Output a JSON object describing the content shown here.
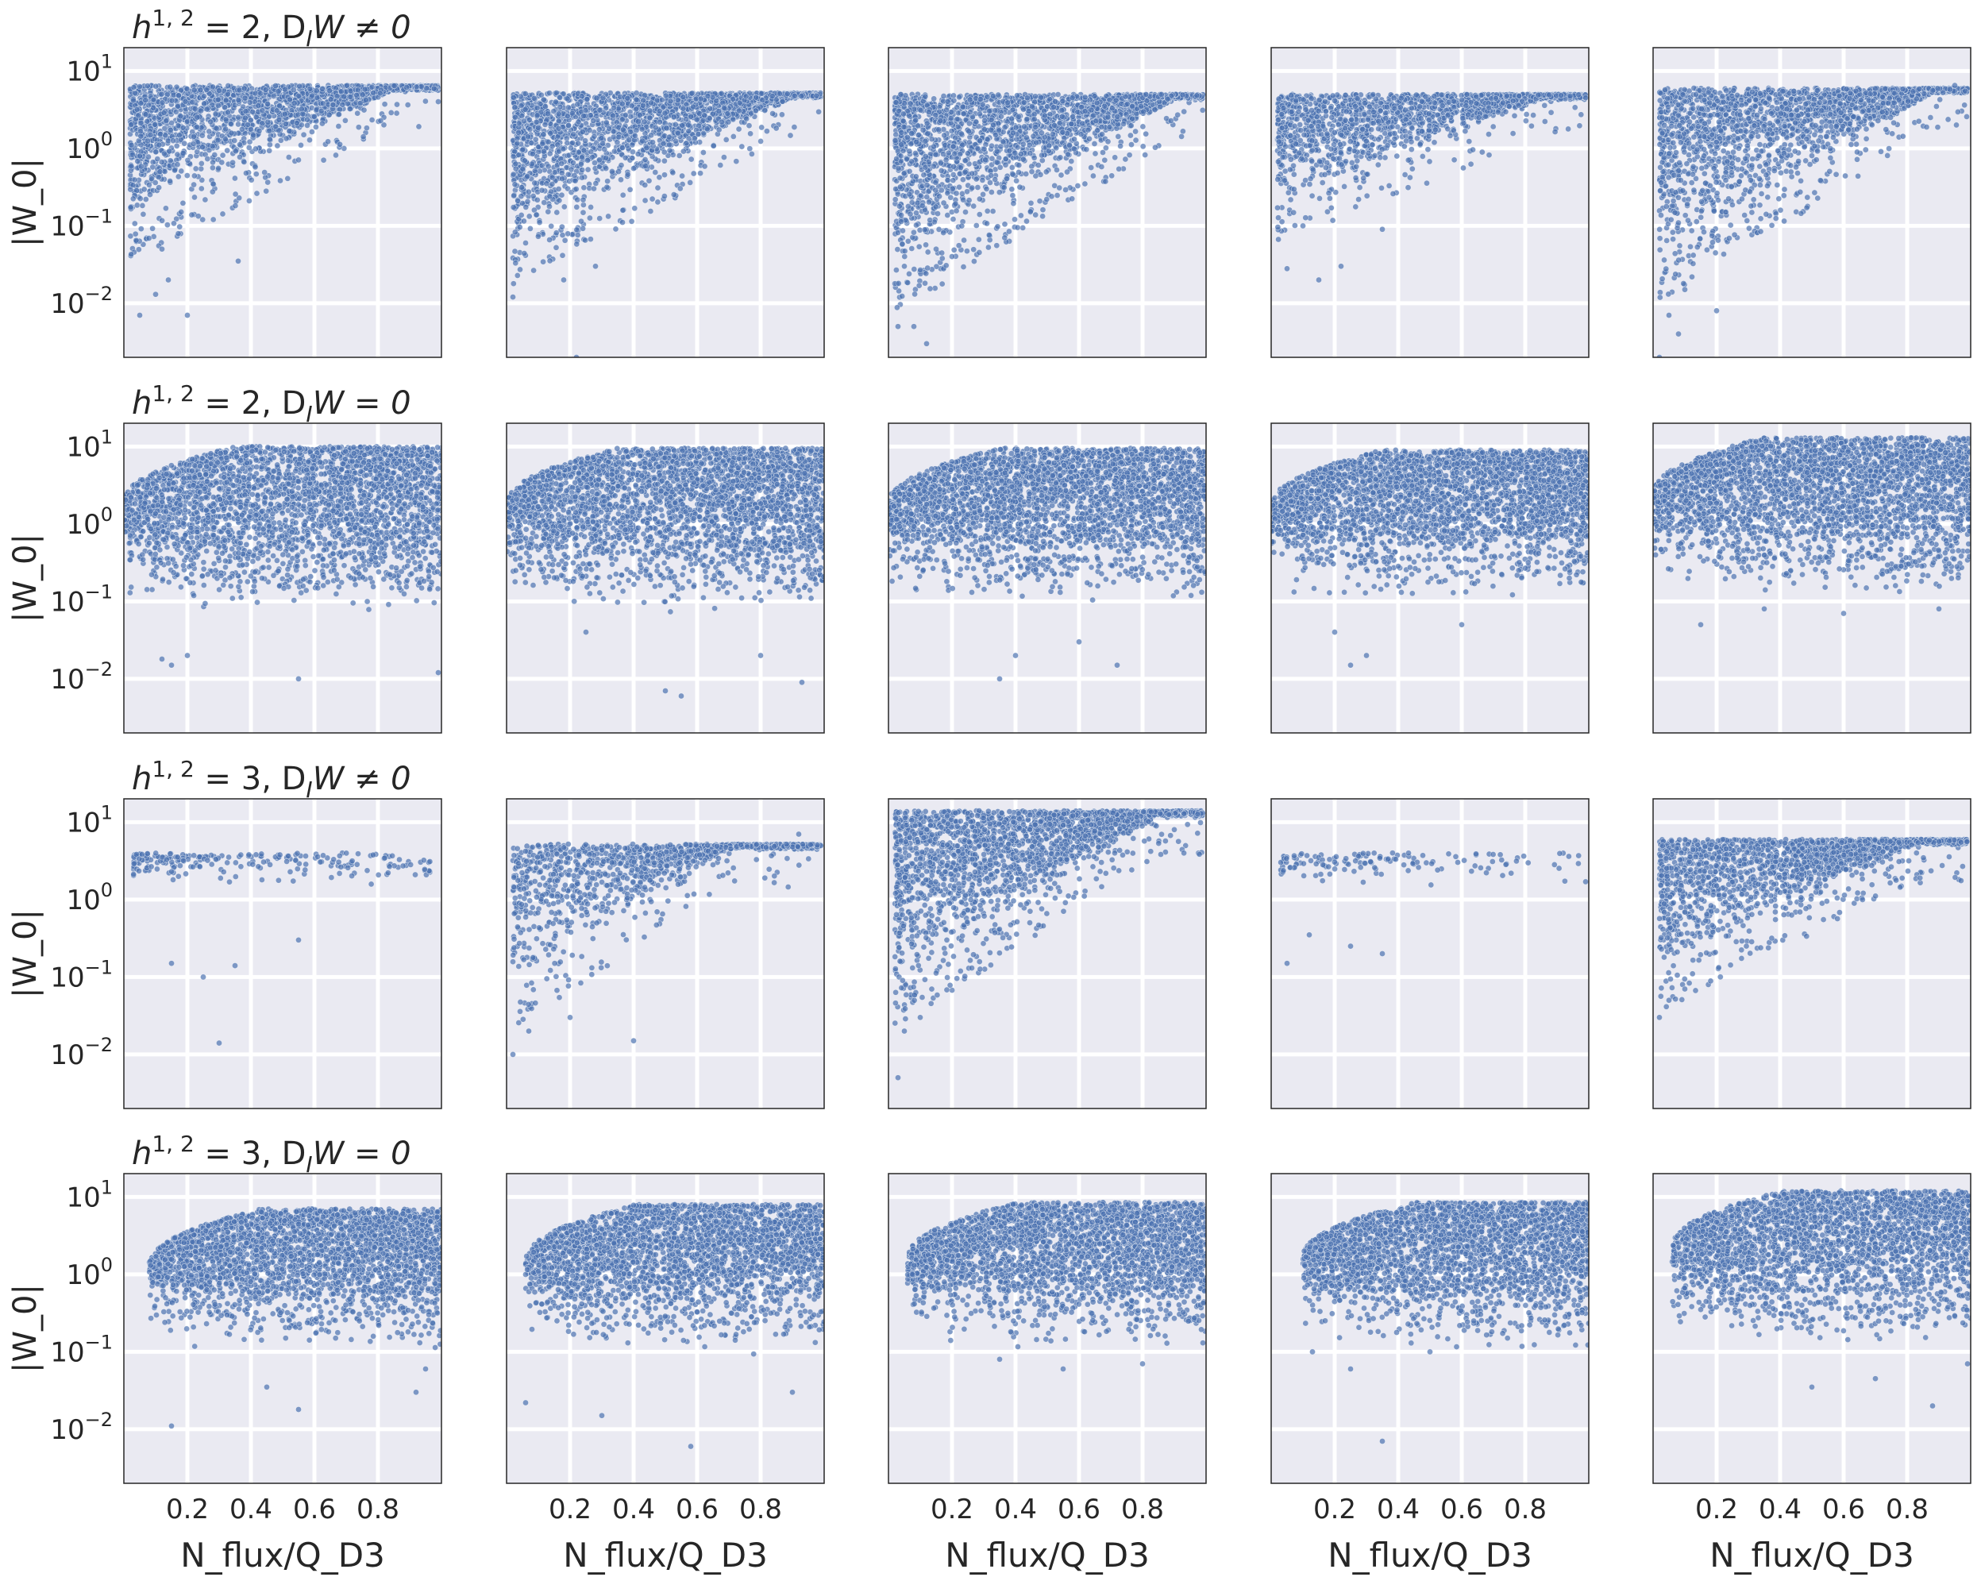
{
  "chart_data": {
    "type": "scatter",
    "layout": "4 rows x 5 columns of panels",
    "xlabel": "N_flux/Q_D3",
    "ylabel": "|W_0|",
    "x_ticks": [
      "0.2",
      "0.4",
      "0.6",
      "0.8"
    ],
    "x_tick_values": [
      0.2,
      0.4,
      0.6,
      0.8
    ],
    "y_ticks": [
      "10^-2",
      "10^-1",
      "10^0",
      "10^1"
    ],
    "y_tick_values": [
      0.01,
      0.1,
      1,
      10
    ],
    "xlim": [
      0.0,
      1.0
    ],
    "ylim": [
      0.002,
      20
    ],
    "y_scale": "log",
    "grid": true,
    "colors": {
      "points": "#4c72b0",
      "panel_bg": "#eaeaf2",
      "grid": "#ffffff"
    },
    "rows": [
      {
        "title": {
          "base": "h",
          "sup": "1, 2",
          "rest": " = 2, D",
          "sub": "I",
          "tail": "W ≠ 0"
        },
        "pattern": "wedge",
        "panels": [
          {
            "type": "wedge",
            "top": 6.5,
            "floor0": 0.1,
            "xconv": 0.85,
            "count": 2000,
            "outliers": [
              [
                0.05,
                0.007
              ],
              [
                0.14,
                0.02
              ],
              [
                0.2,
                0.007
              ],
              [
                0.36,
                0.035
              ],
              [
                0.12,
                0.05
              ],
              [
                0.1,
                0.013
              ],
              [
                0.99,
                4
              ]
            ]
          },
          {
            "type": "wedge",
            "top": 5.2,
            "floor0": 0.05,
            "xconv": 0.9,
            "count": 2200,
            "outliers": [
              [
                0.02,
                0.012
              ],
              [
                0.22,
                0.002
              ],
              [
                0.06,
                0.06
              ],
              [
                0.18,
                0.02
              ],
              [
                0.28,
                0.03
              ]
            ]
          },
          {
            "type": "wedge",
            "top": 5.0,
            "floor0": 0.02,
            "xconv": 0.9,
            "count": 2300,
            "outliers": [
              [
                0.03,
                0.005
              ],
              [
                0.08,
                0.005
              ],
              [
                0.12,
                0.003
              ],
              [
                0.05,
                0.03
              ],
              [
                0.15,
                0.05
              ],
              [
                0.2,
                0.04
              ]
            ]
          },
          {
            "type": "wedge",
            "top": 5.0,
            "floor0": 0.18,
            "xconv": 0.85,
            "count": 1700,
            "outliers": [
              [
                0.05,
                0.028
              ],
              [
                0.15,
                0.02
              ],
              [
                0.22,
                0.03
              ],
              [
                0.35,
                0.09
              ],
              [
                0.99,
                4.5
              ]
            ]
          },
          {
            "type": "wedge",
            "top": 6.0,
            "floor0": 0.03,
            "xconv": 0.88,
            "count": 2100,
            "outliers": [
              [
                0.02,
                0.002
              ],
              [
                0.05,
                0.007
              ],
              [
                0.08,
                0.004
              ],
              [
                0.1,
                0.015
              ],
              [
                0.2,
                0.008
              ],
              [
                0.95,
                6.5
              ]
            ]
          }
        ]
      },
      {
        "title": {
          "base": "h",
          "sup": "1, 2",
          "rest": " = 2, D",
          "sub": "I",
          "tail": "W = 0"
        },
        "pattern": "band",
        "panels": [
          {
            "type": "band",
            "top": 10.0,
            "bottom": 0.3,
            "count": 3000,
            "outliers": [
              [
                0.15,
                0.015
              ],
              [
                0.2,
                0.02
              ],
              [
                0.55,
                0.01
              ],
              [
                0.99,
                0.012
              ],
              [
                0.12,
                0.018
              ]
            ]
          },
          {
            "type": "band",
            "top": 9.5,
            "bottom": 0.3,
            "count": 3000,
            "outliers": [
              [
                0.25,
                0.04
              ],
              [
                0.5,
                0.007
              ],
              [
                0.55,
                0.006
              ],
              [
                0.93,
                0.009
              ],
              [
                0.8,
                0.02
              ]
            ]
          },
          {
            "type": "band",
            "top": 9.5,
            "bottom": 0.4,
            "count": 3000,
            "outliers": [
              [
                0.35,
                0.01
              ],
              [
                0.72,
                0.015
              ],
              [
                0.4,
                0.02
              ],
              [
                0.6,
                0.03
              ]
            ]
          },
          {
            "type": "band",
            "top": 9.0,
            "bottom": 0.45,
            "count": 3000,
            "outliers": [
              [
                0.25,
                0.015
              ],
              [
                0.2,
                0.04
              ],
              [
                0.6,
                0.05
              ],
              [
                0.3,
                0.02
              ]
            ]
          },
          {
            "type": "band",
            "top": 13.0,
            "bottom": 0.5,
            "count": 3000,
            "outliers": [
              [
                0.15,
                0.05
              ],
              [
                0.35,
                0.08
              ],
              [
                0.6,
                0.07
              ],
              [
                0.9,
                0.08
              ]
            ]
          }
        ]
      },
      {
        "title": {
          "base": "h",
          "sup": "1, 2",
          "rest": " = 3, D",
          "sub": "I",
          "tail": "W ≠ 0"
        },
        "pattern": "sparse",
        "panels": [
          {
            "type": "sparse",
            "top": 4.0,
            "count": 220,
            "outliers": [
              [
                0.3,
                0.014
              ],
              [
                0.15,
                0.15
              ],
              [
                0.25,
                0.1
              ],
              [
                0.35,
                0.14
              ],
              [
                0.55,
                0.3
              ]
            ]
          },
          {
            "type": "wedge",
            "top": 5.2,
            "floor0": 0.06,
            "xconv": 0.7,
            "count": 1200,
            "outliers": [
              [
                0.02,
                0.01
              ],
              [
                0.07,
                0.02
              ],
              [
                0.2,
                0.03
              ],
              [
                0.4,
                0.015
              ],
              [
                0.92,
                7
              ]
            ]
          },
          {
            "type": "wedge",
            "top": 14.0,
            "floor0": 0.06,
            "xconv": 0.85,
            "count": 2300,
            "outliers": [
              [
                0.03,
                0.005
              ],
              [
                0.05,
                0.02
              ],
              [
                0.1,
                0.03
              ],
              [
                0.9,
                8
              ]
            ]
          },
          {
            "type": "sparse",
            "top": 4.0,
            "count": 140,
            "outliers": [
              [
                0.05,
                0.15
              ],
              [
                0.12,
                0.35
              ],
              [
                0.25,
                0.25
              ],
              [
                0.35,
                0.2
              ],
              [
                0.99,
                1.7
              ]
            ]
          },
          {
            "type": "wedge",
            "top": 6.0,
            "floor0": 0.1,
            "xconv": 0.82,
            "count": 1900,
            "outliers": [
              [
                0.02,
                0.03
              ],
              [
                0.05,
                0.05
              ],
              [
                0.1,
                0.07
              ],
              [
                0.97,
                5.5
              ]
            ]
          }
        ]
      },
      {
        "title": {
          "base": "h",
          "sup": "1, 2",
          "rest": " = 3, D",
          "sub": "I",
          "tail": "W = 0"
        },
        "pattern": "band",
        "panels": [
          {
            "type": "band",
            "top": 7.0,
            "bottom": 0.4,
            "xstart": 0.08,
            "count": 2800,
            "outliers": [
              [
                0.15,
                0.011
              ],
              [
                0.45,
                0.035
              ],
              [
                0.55,
                0.018
              ],
              [
                0.92,
                0.03
              ],
              [
                0.95,
                0.06
              ]
            ]
          },
          {
            "type": "band",
            "top": 8.0,
            "bottom": 0.4,
            "xstart": 0.06,
            "count": 2800,
            "outliers": [
              [
                0.06,
                0.022
              ],
              [
                0.3,
                0.015
              ],
              [
                0.58,
                0.006
              ],
              [
                0.9,
                0.03
              ]
            ]
          },
          {
            "type": "band",
            "top": 8.5,
            "bottom": 0.45,
            "xstart": 0.06,
            "count": 2800,
            "outliers": [
              [
                0.35,
                0.08
              ],
              [
                0.55,
                0.06
              ],
              [
                0.8,
                0.07
              ]
            ]
          },
          {
            "type": "band",
            "top": 8.5,
            "bottom": 0.45,
            "xstart": 0.1,
            "count": 2800,
            "outliers": [
              [
                0.13,
                0.1
              ],
              [
                0.35,
                0.007
              ],
              [
                0.25,
                0.06
              ],
              [
                0.5,
                0.1
              ]
            ]
          },
          {
            "type": "band",
            "top": 12.0,
            "bottom": 0.5,
            "xstart": 0.06,
            "count": 2800,
            "outliers": [
              [
                0.5,
                0.035
              ],
              [
                0.7,
                0.045
              ],
              [
                0.88,
                0.02
              ],
              [
                0.99,
                0.07
              ]
            ]
          }
        ]
      }
    ]
  }
}
